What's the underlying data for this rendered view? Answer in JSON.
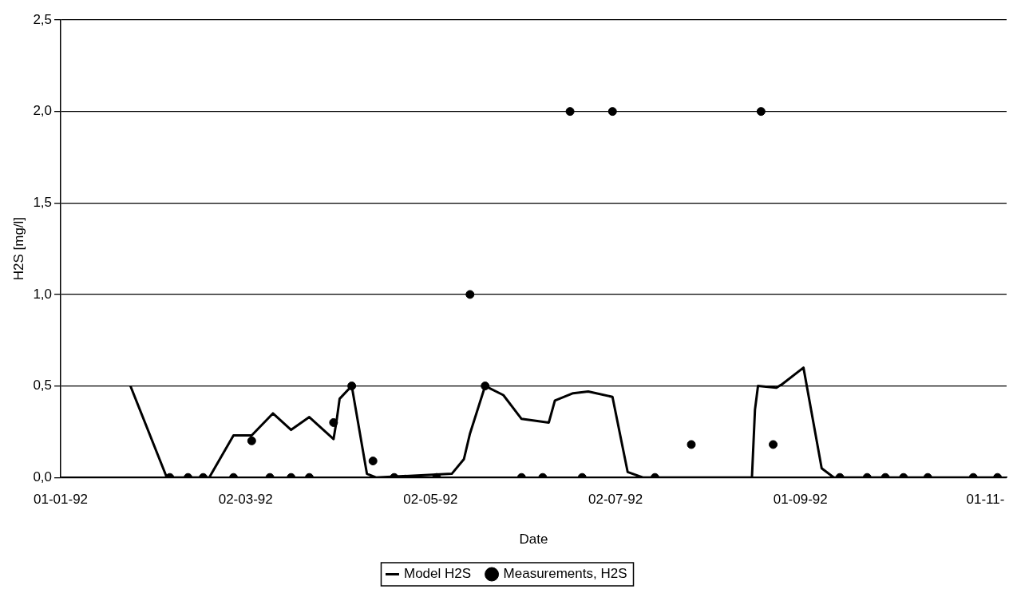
{
  "chart_data": {
    "type": "line",
    "xlabel": "Date",
    "ylabel": "H2S [mg/l]",
    "xlim": [
      "1992-01-01",
      "1992-11-08"
    ],
    "xticks": [
      {
        "value": "1992-01-01",
        "label": "01-01-92"
      },
      {
        "value": "1992-03-02",
        "label": "02-03-92"
      },
      {
        "value": "1992-05-02",
        "label": "02-05-92"
      },
      {
        "value": "1992-07-02",
        "label": "02-07-92"
      },
      {
        "value": "1992-09-01",
        "label": "01-09-92"
      },
      {
        "value": "1992-11-01",
        "label": "01-11-"
      }
    ],
    "ylim": [
      0,
      2.5
    ],
    "yticks": [
      {
        "value": 0,
        "label": "0,0"
      },
      {
        "value": 0.5,
        "label": "0,5"
      },
      {
        "value": 1,
        "label": "1,0"
      },
      {
        "value": 1.5,
        "label": "1,5"
      },
      {
        "value": 2,
        "label": "2,0"
      },
      {
        "value": 2.5,
        "label": "2,5"
      }
    ],
    "grid": "y",
    "legend": "bottom",
    "series": [
      {
        "name": "Model H2S",
        "color": "#000000",
        "marker": "none",
        "line_style": "solid",
        "x": [
          "1992-01-24",
          "1992-02-05",
          "1992-02-19",
          "1992-02-27",
          "1992-03-04",
          "1992-03-11",
          "1992-03-17",
          "1992-03-23",
          "1992-03-31",
          "1992-04-01",
          "1992-04-02",
          "1992-04-06",
          "1992-04-11",
          "1992-04-14",
          "1992-05-09",
          "1992-05-13",
          "1992-05-15",
          "1992-05-20",
          "1992-05-26",
          "1992-06-01",
          "1992-06-10",
          "1992-06-12",
          "1992-06-18",
          "1992-06-23",
          "1992-07-01",
          "1992-07-06",
          "1992-07-11",
          "1992-08-16",
          "1992-08-17",
          "1992-08-18",
          "1992-08-24",
          "1992-08-26",
          "1992-09-02",
          "1992-09-08",
          "1992-09-12",
          "1992-11-06"
        ],
        "values": [
          0.5,
          0,
          0,
          0.23,
          0.23,
          0.35,
          0.26,
          0.33,
          0.21,
          0.31,
          0.43,
          0.5,
          0.02,
          0,
          0.02,
          0.1,
          0.24,
          0.5,
          0.45,
          0.32,
          0.3,
          0.42,
          0.46,
          0.47,
          0.44,
          0.03,
          0,
          0,
          0.37,
          0.5,
          0.49,
          0.51,
          0.6,
          0.05,
          0,
          0
        ]
      },
      {
        "name": "Measurements, H2S",
        "type": "scatter",
        "color": "#000000",
        "marker": "circle",
        "x": [
          "1992-02-06",
          "1992-02-12",
          "1992-02-17",
          "1992-02-27",
          "1992-03-04",
          "1992-03-10",
          "1992-03-17",
          "1992-03-23",
          "1992-03-31",
          "1992-04-06",
          "1992-04-13",
          "1992-04-20",
          "1992-05-04",
          "1992-05-15",
          "1992-05-20",
          "1992-06-01",
          "1992-06-08",
          "1992-06-17",
          "1992-06-21",
          "1992-07-01",
          "1992-07-15",
          "1992-07-27",
          "1992-08-19",
          "1992-08-23",
          "1992-09-14",
          "1992-09-23",
          "1992-09-29",
          "1992-10-05",
          "1992-10-13",
          "1992-10-28",
          "1992-11-05"
        ],
        "values": [
          0,
          0,
          0,
          0,
          0.2,
          0,
          0,
          0,
          0.3,
          0.5,
          0.09,
          0,
          0,
          1,
          0.5,
          0,
          0,
          2,
          0,
          2,
          0,
          0.18,
          2,
          0.18,
          0,
          0,
          0,
          0,
          0,
          0,
          0
        ]
      }
    ]
  }
}
